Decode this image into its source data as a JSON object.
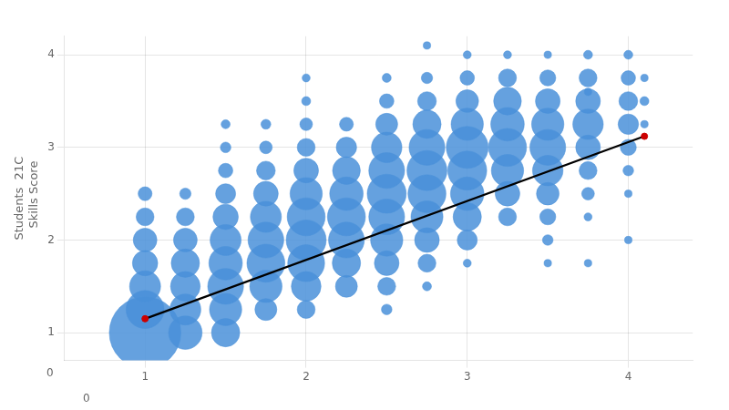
{
  "chart_data": {
    "type": "bubble",
    "ylabel": "Students  21C\n  Skills Score",
    "xlim": [
      0.5,
      4.4
    ],
    "ylim": [
      0.7,
      4.2
    ],
    "xticks": [
      1,
      2,
      3,
      4
    ],
    "yticks": [
      1,
      2,
      3,
      4
    ],
    "grid": true,
    "background_color": "#ffffff",
    "annotations": [
      "0",
      "0"
    ],
    "series": [
      {
        "type": "bubble",
        "color": "#4A90D9",
        "x": [
          1.0,
          1.0,
          1.0,
          1.0,
          1.0,
          1.0,
          1.0,
          1.25,
          1.25,
          1.25,
          1.25,
          1.25,
          1.25,
          1.25,
          1.5,
          1.5,
          1.5,
          1.5,
          1.5,
          1.5,
          1.5,
          1.5,
          1.5,
          1.75,
          1.75,
          1.75,
          1.75,
          1.75,
          1.75,
          1.75,
          1.75,
          2.0,
          2.0,
          2.0,
          2.0,
          2.0,
          2.0,
          2.0,
          2.0,
          2.0,
          2.0,
          2.25,
          2.25,
          2.25,
          2.25,
          2.25,
          2.25,
          2.25,
          2.25,
          2.5,
          2.5,
          2.5,
          2.5,
          2.5,
          2.5,
          2.5,
          2.5,
          2.5,
          2.75,
          2.75,
          2.75,
          2.75,
          2.75,
          2.75,
          2.75,
          2.75,
          2.75,
          3.0,
          3.0,
          3.0,
          3.0,
          3.0,
          3.0,
          3.0,
          3.0,
          3.25,
          3.25,
          3.25,
          3.25,
          3.25,
          3.25,
          3.25,
          3.5,
          3.5,
          3.5,
          3.5,
          3.5,
          3.5,
          3.5,
          3.5,
          3.75,
          3.75,
          3.75,
          3.75,
          3.75,
          3.75,
          3.75,
          4.0,
          4.0,
          4.0,
          4.0,
          4.0,
          4.0,
          4.1,
          4.1,
          4.1,
          2.5,
          2.75,
          3.0,
          3.5,
          3.75,
          4.0,
          4.0,
          3.75,
          3.5,
          3.0,
          2.75,
          3.25,
          2.5,
          1.5,
          1.75,
          2.0,
          3.75
        ],
        "y": [
          1.0,
          1.25,
          1.5,
          1.75,
          2.0,
          2.25,
          2.5,
          1.0,
          1.25,
          1.5,
          1.75,
          2.0,
          2.25,
          2.5,
          1.0,
          1.25,
          1.5,
          1.75,
          2.0,
          2.25,
          2.5,
          2.75,
          3.0,
          1.25,
          1.5,
          1.75,
          2.0,
          2.25,
          2.5,
          2.75,
          3.0,
          1.25,
          1.5,
          1.75,
          2.0,
          2.25,
          2.5,
          2.75,
          3.0,
          3.25,
          3.5,
          1.5,
          1.75,
          2.0,
          2.25,
          2.5,
          2.75,
          3.0,
          3.25,
          1.5,
          1.75,
          2.0,
          2.25,
          2.5,
          2.75,
          3.0,
          3.25,
          3.5,
          1.75,
          2.0,
          2.25,
          2.5,
          2.75,
          3.0,
          3.25,
          3.5,
          3.75,
          2.0,
          2.25,
          2.5,
          2.75,
          3.0,
          3.25,
          3.5,
          3.75,
          2.25,
          2.5,
          2.75,
          3.0,
          3.25,
          3.5,
          3.75,
          2.0,
          2.25,
          2.5,
          2.75,
          3.0,
          3.25,
          3.5,
          3.75,
          2.5,
          2.75,
          3.0,
          3.25,
          3.5,
          3.75,
          4.0,
          2.75,
          3.0,
          3.25,
          3.5,
          3.75,
          4.0,
          3.5,
          3.75,
          3.25,
          1.25,
          1.5,
          1.75,
          1.75,
          2.25,
          2.5,
          2.0,
          3.6,
          4.0,
          4.0,
          4.1,
          4.0,
          3.75,
          3.25,
          3.25,
          3.75,
          1.75
        ],
        "sizes": [
          3200,
          900,
          600,
          400,
          350,
          200,
          120,
          700,
          600,
          550,
          500,
          350,
          200,
          80,
          500,
          650,
          800,
          700,
          600,
          400,
          250,
          130,
          70,
          300,
          650,
          900,
          800,
          600,
          380,
          220,
          100,
          200,
          550,
          850,
          1000,
          900,
          650,
          380,
          200,
          100,
          50,
          300,
          500,
          800,
          900,
          700,
          480,
          260,
          120,
          200,
          380,
          650,
          800,
          950,
          800,
          580,
          300,
          130,
          200,
          380,
          640,
          900,
          1000,
          800,
          500,
          220,
          80,
          250,
          500,
          700,
          950,
          1100,
          650,
          320,
          130,
          200,
          380,
          650,
          900,
          700,
          480,
          200,
          70,
          160,
          320,
          580,
          800,
          650,
          380,
          160,
          100,
          200,
          380,
          580,
          380,
          200,
          50,
          70,
          160,
          260,
          220,
          130,
          50,
          50,
          35,
          35,
          70,
          50,
          40,
          35,
          40,
          35,
          35,
          35,
          35,
          40,
          35,
          40,
          50,
          50,
          60,
          40,
          35
        ]
      },
      {
        "type": "line",
        "color": "#000000",
        "x": [
          1.0,
          4.1
        ],
        "y": [
          1.15,
          3.12
        ]
      },
      {
        "type": "scatter",
        "color": "#cc0000",
        "x": [
          1.0,
          4.1
        ],
        "y": [
          1.15,
          3.12
        ]
      }
    ]
  }
}
